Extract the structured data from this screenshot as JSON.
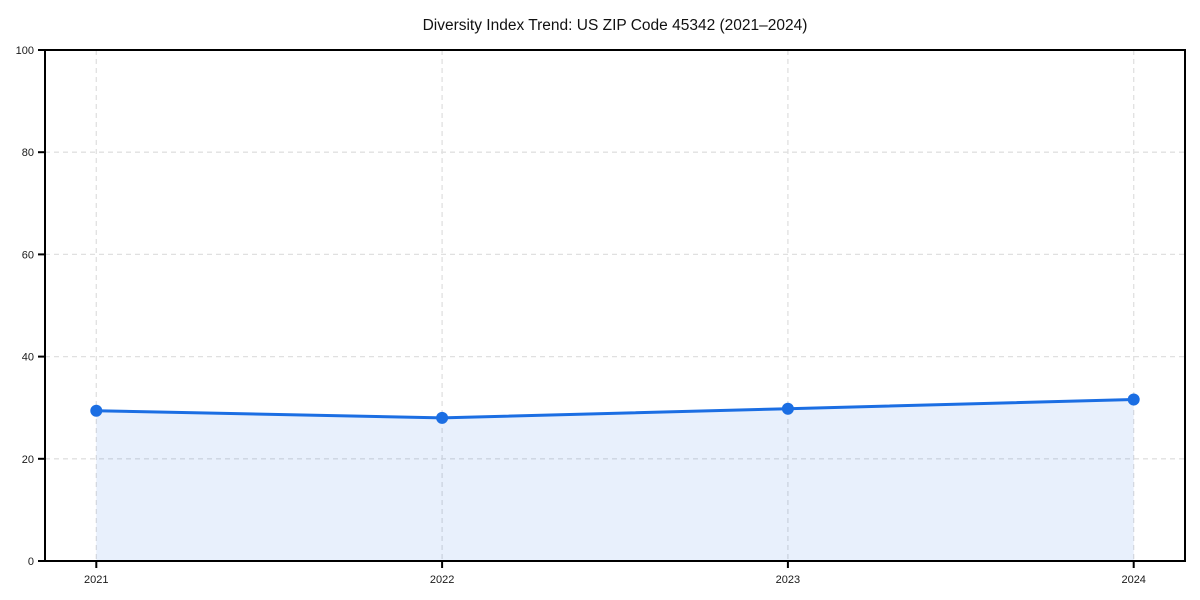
{
  "page": {
    "background": "#ffffff"
  },
  "chart_data": {
    "type": "line",
    "title": "Diversity Index Trend: US ZIP Code 45342 (2021–2024)",
    "x": [
      2021,
      2022,
      2023,
      2024
    ],
    "xticklabels": [
      "2021",
      "2022",
      "2023",
      "2024"
    ],
    "series": [
      {
        "name": "Diversity Index",
        "values": [
          29.4,
          28.0,
          29.8,
          31.6
        ]
      }
    ],
    "xlabel": "",
    "ylabel": "",
    "ylim": [
      0,
      100
    ],
    "yticks": [
      0,
      20,
      40,
      60,
      80,
      100
    ],
    "grid": true,
    "grid_style": "dashed",
    "legend_position": "none",
    "area_fill": true,
    "markers": true,
    "colors": {
      "line": "#1b6ee3",
      "marker": "#1b6ee3",
      "area_fill": "rgba(27,110,227,0.10)",
      "grid": "#e0e0e0",
      "axis": "#000000",
      "tick_text": "#1a1a1a",
      "title_text": "#111111"
    }
  }
}
